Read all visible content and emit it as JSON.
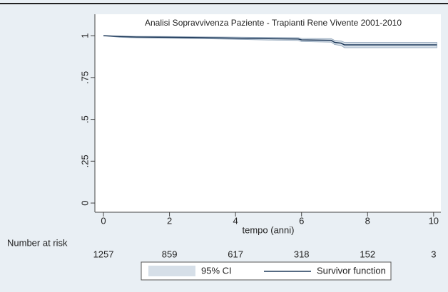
{
  "chart_data": {
    "type": "line",
    "title": "Analisi Sopravvivenza Paziente - Trapianti Rene Vivente 2001-2010",
    "xlabel": "tempo (anni)",
    "x": [
      0,
      0.5,
      1,
      2,
      3,
      4,
      5,
      5.9,
      6,
      6.9,
      7,
      7.2,
      7.3,
      8,
      9,
      10.1
    ],
    "series": [
      {
        "name": "95% CI",
        "color": "#d6dfe8",
        "upper": [
          1,
          0.998,
          0.996,
          0.995,
          0.993,
          0.991,
          0.989,
          0.988,
          0.984,
          0.982,
          0.972,
          0.968,
          0.96,
          0.96,
          0.96,
          0.96
        ],
        "lower": [
          1,
          0.99,
          0.987,
          0.984,
          0.982,
          0.978,
          0.974,
          0.971,
          0.965,
          0.961,
          0.947,
          0.941,
          0.928,
          0.928,
          0.928,
          0.928
        ]
      },
      {
        "name": "Survivor function",
        "color": "#1f3a5a",
        "values": [
          1,
          0.995,
          0.992,
          0.99,
          0.988,
          0.985,
          0.982,
          0.98,
          0.975,
          0.972,
          0.96,
          0.955,
          0.945,
          0.945,
          0.945,
          0.945
        ]
      }
    ],
    "xlim": [
      -0.26,
      10.22
    ],
    "xticks": [
      0,
      2,
      4,
      6,
      8,
      10
    ],
    "ylim": [
      -0.055,
      1.128
    ],
    "yticks": [
      0,
      {
        "value": 0.25,
        "label": ".25"
      },
      {
        "value": 0.5,
        "label": ".5"
      },
      {
        "value": 0.75,
        "label": ".75"
      },
      1
    ],
    "risk_table": {
      "label": "Number at risk",
      "values": [
        1257,
        859,
        617,
        318,
        152,
        3
      ]
    }
  }
}
